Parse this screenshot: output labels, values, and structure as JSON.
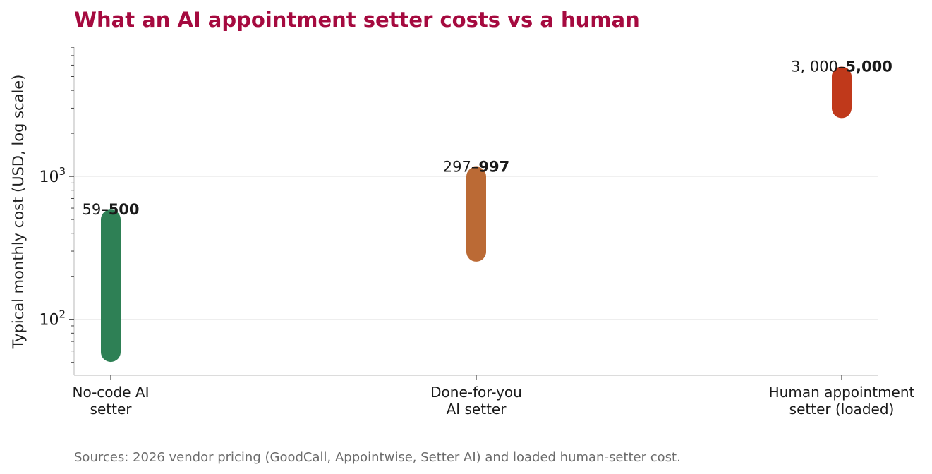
{
  "chart_data": {
    "type": "range",
    "title": "What an AI appointment setter costs vs a human",
    "ylabel": "Typical monthly cost (USD, log scale)",
    "xlabel": "",
    "yscale": "log",
    "ylim": [
      40,
      8500
    ],
    "grid": "horizontal, major ticks only",
    "yticks": [
      {
        "base": "10",
        "exp": "2",
        "value": 100
      },
      {
        "base": "10",
        "exp": "3",
        "value": 1000
      }
    ],
    "categories": [
      {
        "lines": [
          "No-code AI",
          "setter"
        ],
        "low": 59,
        "high": 500,
        "low_label": "59",
        "sep": "–",
        "high_label": "500",
        "color": "#2e8055"
      },
      {
        "lines": [
          "Done-for-you",
          "AI setter"
        ],
        "low": 297,
        "high": 997,
        "low_label": "297",
        "sep": "–",
        "high_label": "997",
        "color": "#bb6a35"
      },
      {
        "lines": [
          "Human appointment",
          "setter (loaded)"
        ],
        "low": 3000,
        "high": 5000,
        "low_label": "3, 000",
        "sep": "–",
        "high_label": "5,000",
        "color": "#c0391b"
      }
    ],
    "source": "Sources: 2026 vendor pricing (GoodCall, Appointwise, Setter AI) and loaded human-setter cost."
  }
}
